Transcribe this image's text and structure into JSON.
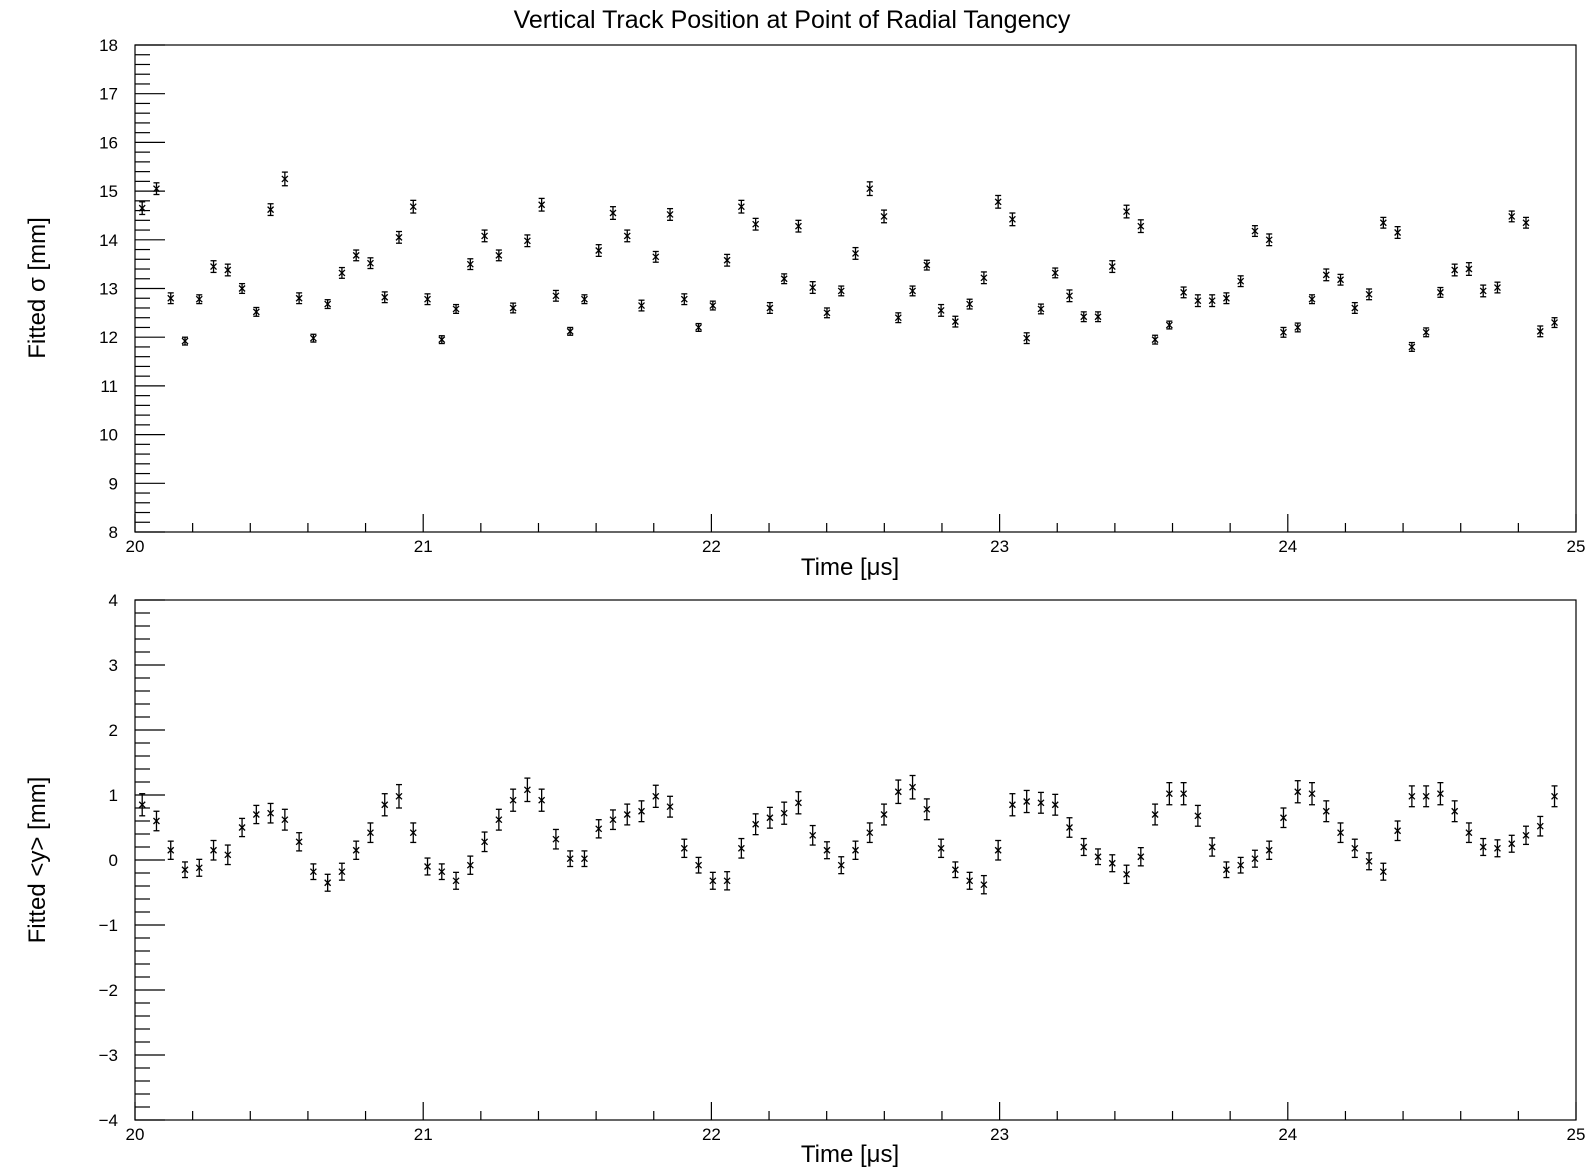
{
  "figure_title": "Vertical Track Position at Point of Radial Tangency",
  "chart_data": [
    {
      "type": "scatter",
      "marker": "x with error bars",
      "xlabel": "Time [μs]",
      "ylabel": "Fitted σ [mm]",
      "xlim": [
        20,
        25
      ],
      "ylim": [
        8,
        18
      ],
      "xticks": [
        "20",
        "21",
        "22",
        "23",
        "24",
        "25"
      ],
      "yticks": [
        "8",
        "9",
        "10",
        "11",
        "12",
        "13",
        "14",
        "15",
        "16",
        "17",
        "18"
      ],
      "grid": false,
      "x_start": 20.025,
      "x_step": 0.0495,
      "y": [
        14.65,
        15.05,
        12.8,
        11.92,
        12.78,
        13.45,
        13.38,
        13.0,
        12.52,
        14.62,
        15.25,
        12.8,
        11.98,
        12.68,
        13.32,
        13.68,
        13.52,
        12.82,
        14.05,
        14.68,
        12.78,
        11.95,
        12.58,
        13.5,
        14.08,
        13.68,
        12.6,
        13.98,
        14.72,
        12.85,
        12.12,
        12.78,
        13.78,
        14.55,
        14.08,
        12.65,
        13.65,
        14.52,
        12.78,
        12.2,
        12.65,
        13.58,
        14.68,
        14.32,
        12.6,
        13.2,
        14.28,
        13.02,
        12.5,
        12.95,
        13.72,
        15.05,
        14.48,
        12.4,
        12.95,
        13.48,
        12.55,
        12.32,
        12.68,
        13.22,
        14.78,
        14.42,
        11.98,
        12.58,
        13.32,
        12.85,
        12.42,
        12.42,
        13.45,
        14.58,
        14.28,
        11.95,
        12.25,
        12.92,
        12.75,
        12.75,
        12.8,
        13.15,
        14.18,
        14.0,
        12.1,
        12.2,
        12.78,
        13.28,
        13.18,
        12.6,
        12.88,
        14.35,
        14.15,
        11.8,
        12.1,
        12.92,
        13.38,
        13.4,
        12.95,
        13.02,
        14.48,
        14.35,
        12.12,
        12.3
      ],
      "err": [
        0.13,
        0.12,
        0.11,
        0.08,
        0.09,
        0.12,
        0.12,
        0.1,
        0.09,
        0.12,
        0.14,
        0.11,
        0.08,
        0.09,
        0.11,
        0.11,
        0.11,
        0.11,
        0.12,
        0.13,
        0.11,
        0.08,
        0.09,
        0.11,
        0.12,
        0.11,
        0.1,
        0.12,
        0.13,
        0.11,
        0.08,
        0.09,
        0.12,
        0.13,
        0.12,
        0.11,
        0.11,
        0.12,
        0.11,
        0.08,
        0.09,
        0.12,
        0.13,
        0.12,
        0.11,
        0.1,
        0.12,
        0.12,
        0.1,
        0.1,
        0.12,
        0.14,
        0.13,
        0.1,
        0.1,
        0.1,
        0.12,
        0.11,
        0.1,
        0.12,
        0.13,
        0.13,
        0.11,
        0.1,
        0.1,
        0.12,
        0.1,
        0.1,
        0.12,
        0.13,
        0.13,
        0.09,
        0.08,
        0.11,
        0.12,
        0.12,
        0.11,
        0.11,
        0.11,
        0.12,
        0.1,
        0.09,
        0.09,
        0.12,
        0.11,
        0.11,
        0.11,
        0.11,
        0.12,
        0.09,
        0.09,
        0.1,
        0.12,
        0.13,
        0.12,
        0.11,
        0.11,
        0.11,
        0.11,
        0.1
      ]
    },
    {
      "type": "scatter",
      "marker": "x with error bars",
      "xlabel": "Time [μs]",
      "ylabel": "Fitted <y> [mm]",
      "xlim": [
        20,
        25
      ],
      "ylim": [
        -4,
        4
      ],
      "xticks": [
        "20",
        "21",
        "22",
        "23",
        "24",
        "25"
      ],
      "yticks": [
        "−4",
        "−3",
        "−2",
        "−1",
        "0",
        "1",
        "2",
        "3",
        "4"
      ],
      "grid": false,
      "x_start": 20.025,
      "x_step": 0.0495,
      "y": [
        0.85,
        0.6,
        0.15,
        -0.15,
        -0.12,
        0.15,
        0.08,
        0.5,
        0.7,
        0.72,
        0.62,
        0.28,
        -0.18,
        -0.35,
        -0.18,
        0.15,
        0.42,
        0.85,
        0.98,
        0.42,
        -0.1,
        -0.18,
        -0.32,
        -0.08,
        0.28,
        0.62,
        0.92,
        1.08,
        0.92,
        0.32,
        0.02,
        0.02,
        0.48,
        0.62,
        0.7,
        0.75,
        0.98,
        0.82,
        0.18,
        -0.08,
        -0.32,
        -0.32,
        0.18,
        0.55,
        0.65,
        0.72,
        0.88,
        0.38,
        0.15,
        -0.08,
        0.15,
        0.42,
        0.7,
        1.05,
        1.12,
        0.78,
        0.18,
        -0.15,
        -0.32,
        -0.38,
        0.15,
        0.85,
        0.9,
        0.88,
        0.85,
        0.5,
        0.2,
        0.05,
        -0.05,
        -0.22,
        0.05,
        0.7,
        1.02,
        1.02,
        0.68,
        0.2,
        -0.15,
        -0.08,
        0.02,
        0.15,
        0.65,
        1.05,
        1.02,
        0.75,
        0.42,
        0.18,
        -0.02,
        -0.18,
        0.45,
        0.98,
        0.98,
        1.02,
        0.75,
        0.42,
        0.2,
        0.18,
        0.25,
        0.38,
        0.52,
        0.98
      ],
      "err": [
        0.17,
        0.15,
        0.14,
        0.12,
        0.13,
        0.15,
        0.15,
        0.14,
        0.14,
        0.15,
        0.16,
        0.14,
        0.12,
        0.13,
        0.13,
        0.14,
        0.15,
        0.17,
        0.18,
        0.15,
        0.13,
        0.12,
        0.13,
        0.14,
        0.15,
        0.16,
        0.17,
        0.18,
        0.17,
        0.15,
        0.12,
        0.12,
        0.14,
        0.15,
        0.16,
        0.16,
        0.17,
        0.16,
        0.14,
        0.12,
        0.13,
        0.14,
        0.15,
        0.16,
        0.16,
        0.17,
        0.17,
        0.15,
        0.13,
        0.13,
        0.14,
        0.15,
        0.16,
        0.18,
        0.18,
        0.16,
        0.14,
        0.12,
        0.13,
        0.14,
        0.15,
        0.17,
        0.17,
        0.16,
        0.16,
        0.15,
        0.13,
        0.12,
        0.13,
        0.14,
        0.14,
        0.16,
        0.17,
        0.17,
        0.16,
        0.14,
        0.12,
        0.12,
        0.13,
        0.14,
        0.15,
        0.17,
        0.17,
        0.16,
        0.15,
        0.14,
        0.13,
        0.13,
        0.15,
        0.16,
        0.16,
        0.17,
        0.16,
        0.15,
        0.13,
        0.13,
        0.13,
        0.14,
        0.15,
        0.16
      ]
    }
  ]
}
